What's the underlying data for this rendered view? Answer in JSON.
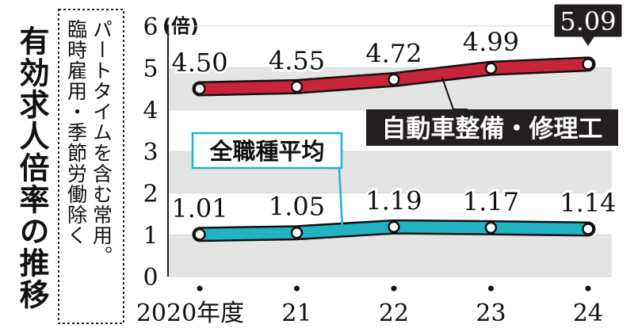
{
  "chart_data": {
    "type": "line",
    "title": "有効求人倍率の推移",
    "note": "パートタイムを含む常用。臨時雇用・季節労働除く",
    "unit": "(倍)",
    "categories": [
      "2020年度",
      "21",
      "22",
      "23",
      "24"
    ],
    "ylim": [
      0,
      6
    ],
    "yticks": [
      0,
      1,
      2,
      3,
      4,
      5,
      6
    ],
    "grid": true,
    "series": [
      {
        "name": "自動車整備・修理工",
        "values": [
          4.5,
          4.55,
          4.72,
          4.99,
          5.09
        ],
        "labels": [
          "4.50",
          "4.55",
          "4.72",
          "4.99",
          "5.09"
        ],
        "color": "#c8253a"
      },
      {
        "name": "全職種平均",
        "values": [
          1.01,
          1.05,
          1.19,
          1.17,
          1.14
        ],
        "labels": [
          "1.01",
          "1.05",
          "1.19",
          "1.17",
          "1.14"
        ],
        "color": "#21b3c2"
      }
    ],
    "band_color": "#e4e4e4",
    "callout_dark": "#231f20"
  }
}
